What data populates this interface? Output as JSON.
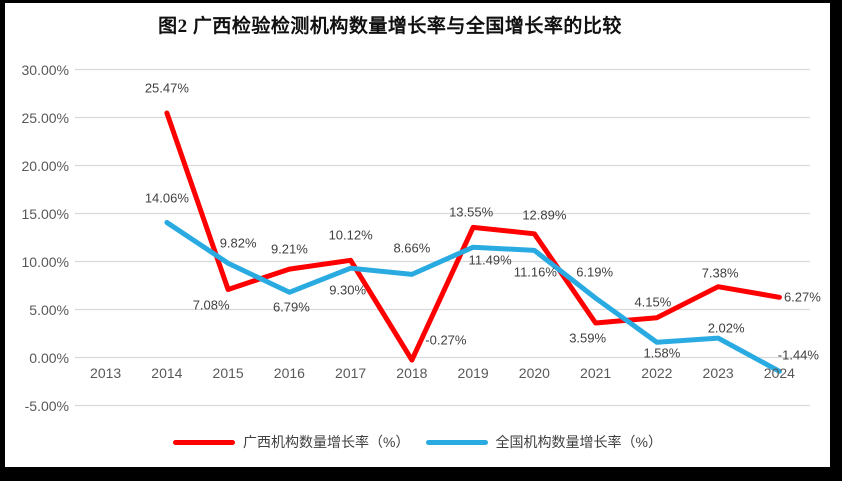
{
  "accent_colors": {
    "guangxi_red": "#FF0000",
    "national_blue": "#29ABE2",
    "gridline": "#D9D9D9",
    "tick_text": "#595959",
    "label_text": "#404040",
    "frame": "#000000"
  },
  "chart_data": {
    "type": "line",
    "title": "图2 广西检验检测机构数量增长率与全国增长率的比较",
    "categories": [
      "2013",
      "2014",
      "2015",
      "2016",
      "2017",
      "2018",
      "2019",
      "2020",
      "2021",
      "2022",
      "2023",
      "2024"
    ],
    "ylim": [
      -5,
      30
    ],
    "grid": true,
    "legend_position": "bottom",
    "y_axis": {
      "ticks": [
        {
          "label": "30.00%",
          "value": 30
        },
        {
          "label": "25.00%",
          "value": 25
        },
        {
          "label": "20.00%",
          "value": 20
        },
        {
          "label": "15.00%",
          "value": 15
        },
        {
          "label": "10.00%",
          "value": 10
        },
        {
          "label": "5.00%",
          "value": 5
        },
        {
          "label": "0.00%",
          "value": 0
        },
        {
          "label": "-5.00%",
          "value": -5
        }
      ]
    },
    "series": [
      {
        "id": "guangxi",
        "name": "广西机构数量增长率（%）",
        "color": "#FF0000",
        "values": [
          null,
          25.47,
          7.08,
          9.21,
          10.12,
          -0.27,
          13.55,
          12.89,
          3.59,
          4.15,
          7.38,
          6.27
        ],
        "labels": [
          null,
          "25.47%",
          "7.08%",
          "9.21%",
          "10.12%",
          "-0.27%",
          "13.55%",
          "12.89%",
          "3.59%",
          "4.15%",
          "7.38%",
          "6.27%"
        ],
        "label_offsets": [
          null,
          [
            0,
            -25
          ],
          [
            -17,
            15
          ],
          [
            0,
            -20
          ],
          [
            0,
            -25
          ],
          [
            34,
            -20
          ],
          [
            -2,
            -15
          ],
          [
            10,
            -19
          ],
          [
            -8,
            15
          ],
          [
            -4,
            -16
          ],
          [
            2,
            -14
          ],
          [
            23,
            0
          ]
        ]
      },
      {
        "id": "national",
        "name": "全国机构数量增长率（%）",
        "color": "#29ABE2",
        "values": [
          null,
          14.06,
          9.82,
          6.79,
          9.3,
          8.66,
          11.49,
          11.16,
          6.19,
          1.58,
          2.02,
          -1.44
        ],
        "labels": [
          null,
          "14.06%",
          "9.82%",
          "6.79%",
          "9.30%",
          "8.66%",
          "11.49%",
          "11.16%",
          "6.19%",
          "1.58%",
          "2.02%",
          "-1.44%"
        ],
        "label_offsets": [
          null,
          [
            0,
            -25
          ],
          [
            10,
            -20
          ],
          [
            2,
            15
          ],
          [
            -3,
            22
          ],
          [
            0,
            -26
          ],
          [
            17,
            13
          ],
          [
            1,
            22
          ],
          [
            -1,
            -26
          ],
          [
            5,
            11
          ],
          [
            8,
            -10
          ],
          [
            19,
            -16
          ]
        ]
      }
    ]
  }
}
